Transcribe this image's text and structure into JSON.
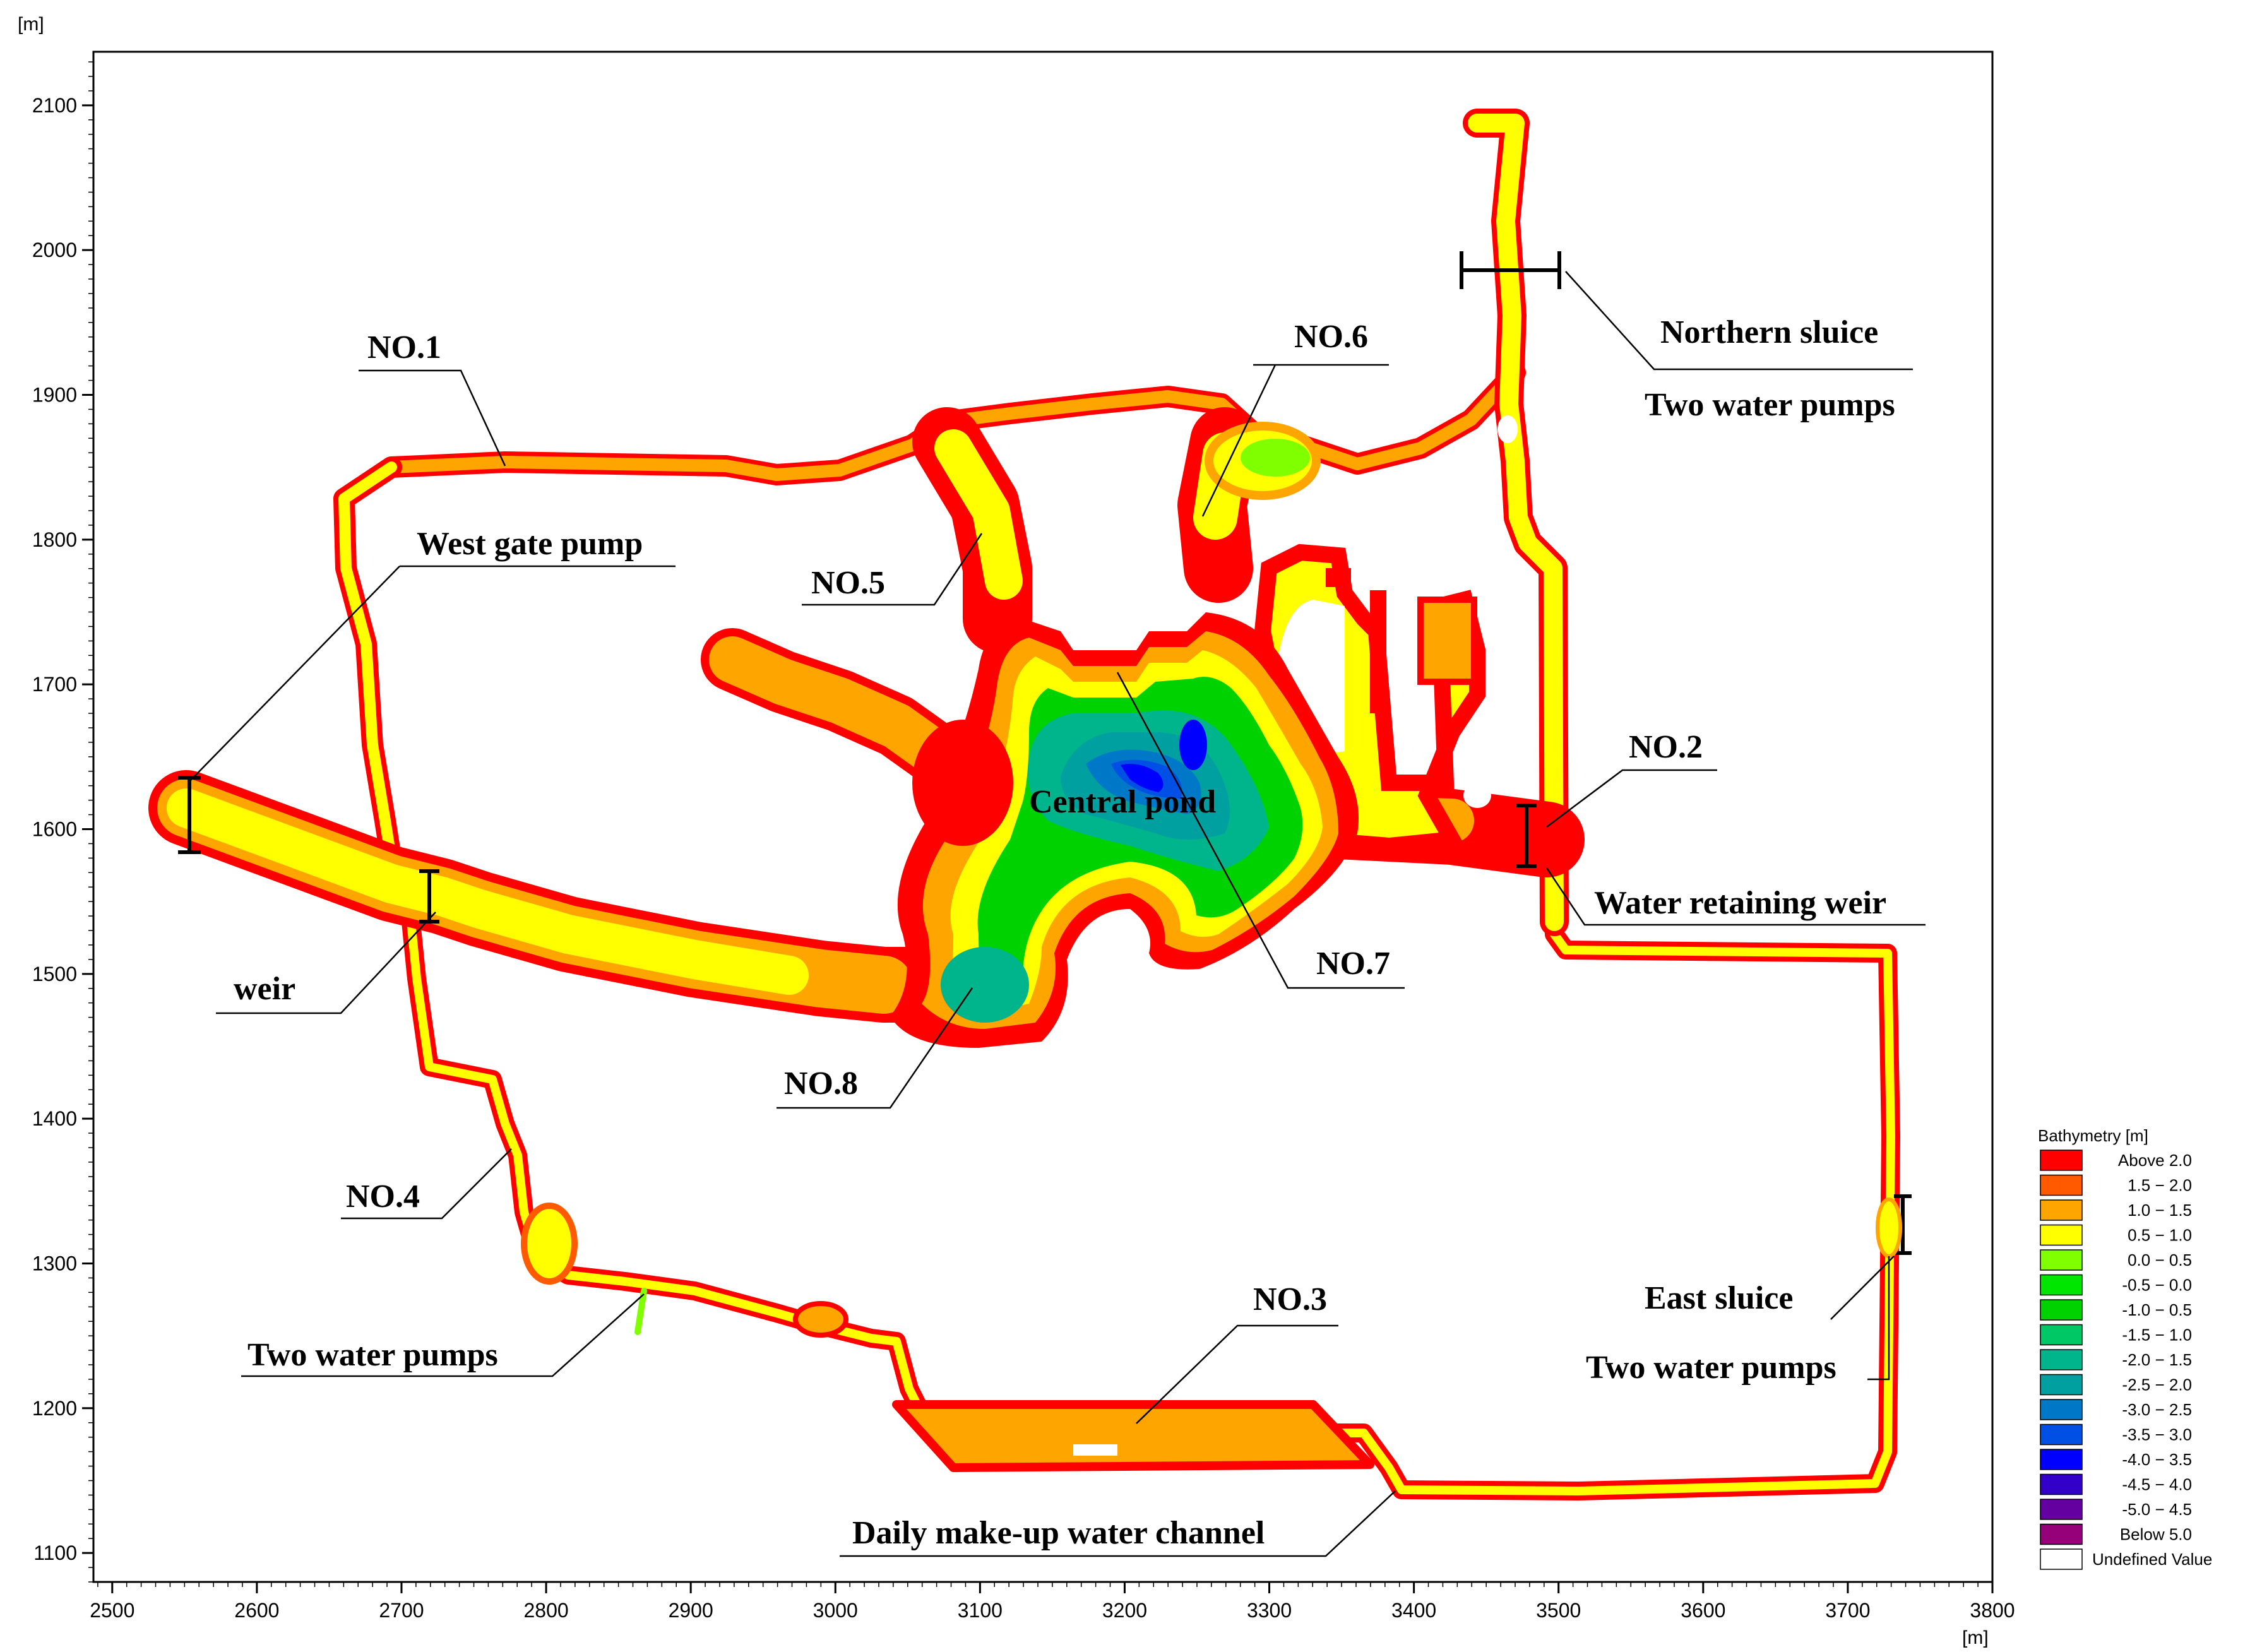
{
  "axes": {
    "x_unit": "[m]",
    "y_unit": "[m]",
    "x_ticks": [
      "2500",
      "2600",
      "2700",
      "2800",
      "2900",
      "3000",
      "3100",
      "3200",
      "3300",
      "3400",
      "3500",
      "3600",
      "3700",
      "3800"
    ],
    "y_ticks": [
      "1100",
      "1200",
      "1300",
      "1400",
      "1500",
      "1600",
      "1700",
      "1800",
      "1900",
      "2000",
      "2100"
    ],
    "x_range": [
      2487,
      3800
    ],
    "y_range": [
      1080,
      2137
    ]
  },
  "annotations": {
    "no1": "NO.1",
    "no2": "NO.2",
    "no3": "NO.3",
    "no4": "NO.4",
    "no5": "NO.5",
    "no6": "NO.6",
    "no7": "NO.7",
    "no8": "NO.8",
    "northern_sluice": "Northern sluice",
    "two_pumps_north": "Two water pumps",
    "west_gate_pump": "West gate pump",
    "weir": "weir",
    "central_pond": "Central pond",
    "water_retaining_weir": "Water retaining weir",
    "east_sluice": "East sluice",
    "two_pumps_east": "Two water pumps",
    "two_pumps_sw": "Two water pumps",
    "daily_channel": "Daily make-up water channel"
  },
  "legend": {
    "title": "Bathymetry [m]",
    "items": [
      {
        "label": "Above  2.0",
        "color": "#ff0000"
      },
      {
        "label": "1.5 − 2.0",
        "color": "#ff5a00"
      },
      {
        "label": "1.0 − 1.5",
        "color": "#ffa500"
      },
      {
        "label": "0.5 − 1.0",
        "color": "#ffff00"
      },
      {
        "label": "0.0 − 0.5",
        "color": "#80ff00"
      },
      {
        "label": "-0.5 − 0.0",
        "color": "#00e600"
      },
      {
        "label": "-1.0 − 0.5",
        "color": "#00d200"
      },
      {
        "label": "-1.5 − 1.0",
        "color": "#00c864"
      },
      {
        "label": "-2.0 − 1.5",
        "color": "#00b48c"
      },
      {
        "label": "-2.5 − 2.0",
        "color": "#00a0a0"
      },
      {
        "label": "-3.0 − 2.5",
        "color": "#0078c8"
      },
      {
        "label": "-3.5 − 3.0",
        "color": "#0050e6"
      },
      {
        "label": "-4.0 − 3.5",
        "color": "#0000ff"
      },
      {
        "label": "-4.5 − 4.0",
        "color": "#3200c8"
      },
      {
        "label": "-5.0 − 4.5",
        "color": "#6400a0"
      },
      {
        "label": "Below  5.0",
        "color": "#960078"
      },
      {
        "label": "Undefined Value",
        "color": "#ffffff"
      }
    ]
  }
}
